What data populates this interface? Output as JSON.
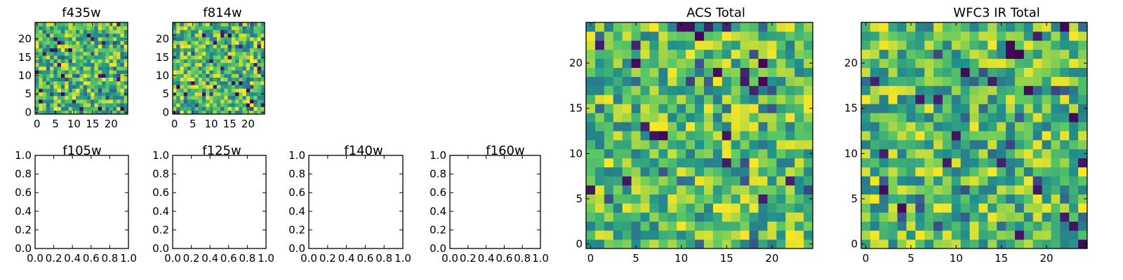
{
  "chart_data": [
    {
      "type": "heatmap",
      "title": "f435w",
      "grid_size": 25,
      "xlim": [
        -0.5,
        24.5
      ],
      "ylim": [
        -0.5,
        24.5
      ],
      "xticks": [
        0,
        5,
        10,
        15,
        20
      ],
      "yticks": [
        0,
        5,
        10,
        15,
        20
      ],
      "colormap": "viridis",
      "seed": 435
    },
    {
      "type": "heatmap",
      "title": "f814w",
      "grid_size": 25,
      "xlim": [
        -0.5,
        24.5
      ],
      "ylim": [
        -0.5,
        24.5
      ],
      "xticks": [
        0,
        5,
        10,
        15,
        20
      ],
      "yticks": [
        0,
        5,
        10,
        15,
        20
      ],
      "colormap": "viridis",
      "seed": 814
    },
    {
      "type": "empty",
      "title": "f105w",
      "xlim": [
        0,
        1
      ],
      "ylim": [
        0,
        1
      ],
      "xticks": [
        "0.0",
        "0.2",
        "0.4",
        "0.6",
        "0.8",
        "1.0"
      ],
      "yticks": [
        "0.0",
        "0.2",
        "0.4",
        "0.6",
        "0.8",
        "1.0"
      ]
    },
    {
      "type": "empty",
      "title": "f125w",
      "xlim": [
        0,
        1
      ],
      "ylim": [
        0,
        1
      ],
      "xticks": [
        "0.0",
        "0.2",
        "0.4",
        "0.6",
        "0.8",
        "1.0"
      ],
      "yticks": [
        "0.0",
        "0.2",
        "0.4",
        "0.6",
        "0.8",
        "1.0"
      ]
    },
    {
      "type": "empty",
      "title": "f140w",
      "xlim": [
        0,
        1
      ],
      "ylim": [
        0,
        1
      ],
      "xticks": [
        "0.0",
        "0.2",
        "0.4",
        "0.6",
        "0.8",
        "1.0"
      ],
      "yticks": [
        "0.0",
        "0.2",
        "0.4",
        "0.6",
        "0.8",
        "1.0"
      ]
    },
    {
      "type": "empty",
      "title": "f160w",
      "xlim": [
        0,
        1
      ],
      "ylim": [
        0,
        1
      ],
      "xticks": [
        "0.0",
        "0.2",
        "0.4",
        "0.6",
        "0.8",
        "1.0"
      ],
      "yticks": [
        "0.0",
        "0.2",
        "0.4",
        "0.6",
        "0.8",
        "1.0"
      ]
    },
    {
      "type": "heatmap",
      "title": "ACS Total",
      "grid_size": 25,
      "xlim": [
        -0.5,
        24.5
      ],
      "ylim": [
        -0.5,
        24.5
      ],
      "xticks": [
        0,
        5,
        10,
        15,
        20
      ],
      "yticks": [
        0,
        5,
        10,
        15,
        20
      ],
      "colormap": "viridis",
      "seed": 1001
    },
    {
      "type": "heatmap",
      "title": "WFC3 IR Total",
      "grid_size": 25,
      "xlim": [
        -0.5,
        24.5
      ],
      "ylim": [
        -0.5,
        24.5
      ],
      "xticks": [
        0,
        5,
        10,
        15,
        20
      ],
      "yticks": [
        0,
        5,
        10,
        15,
        20
      ],
      "colormap": "viridis",
      "seed": 2002
    }
  ]
}
